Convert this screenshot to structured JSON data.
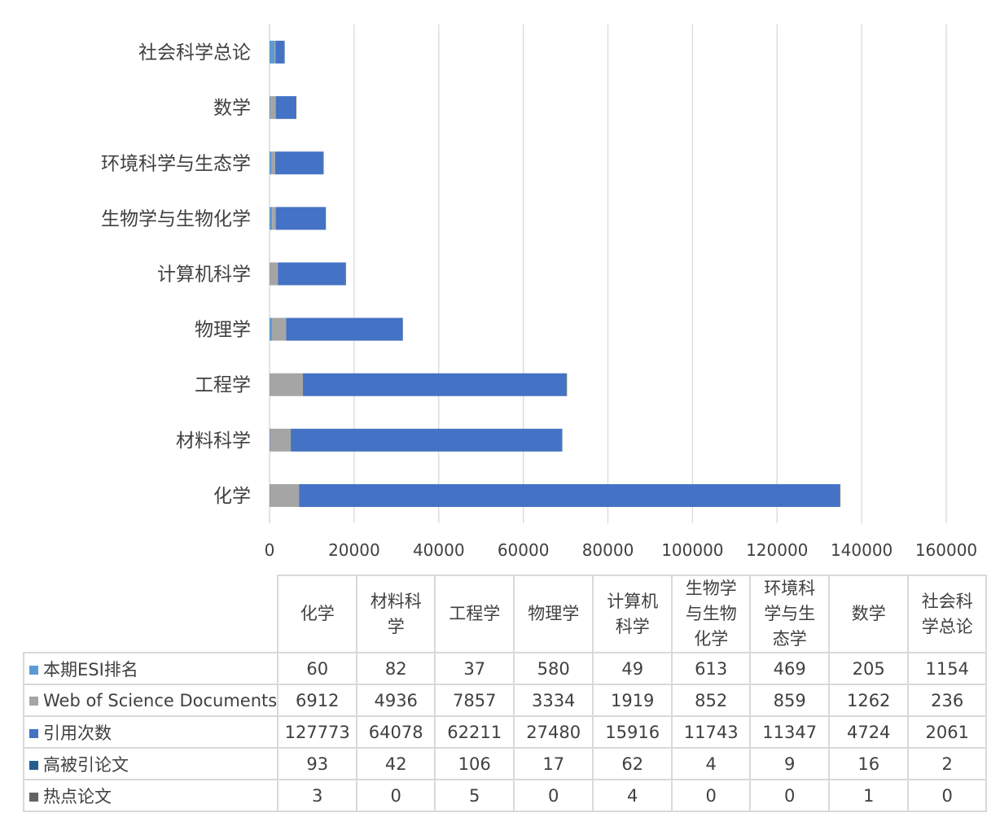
{
  "chart_data": {
    "type": "bar",
    "orientation": "horizontal",
    "stacked": true,
    "categories": [
      "化学",
      "材料科学",
      "工程学",
      "物理学",
      "计算机科学",
      "生物学与生物化学",
      "环境科学与生态学",
      "数学",
      "社会科学总论"
    ],
    "table_headers": [
      "化学",
      "材料科学",
      "工程学",
      "物理学",
      "计算机科学",
      "生物学与生物化学",
      "环境科学与生态学",
      "数学",
      "社会科学总论"
    ],
    "series": [
      {
        "name": "本期ESI排名",
        "color": "#5b9bd5",
        "values": [
          60,
          82,
          37,
          580,
          49,
          613,
          469,
          205,
          1154
        ]
      },
      {
        "name": "Web of Science Documents",
        "color": "#a5a5a5",
        "values": [
          6912,
          4936,
          7857,
          3334,
          1919,
          852,
          859,
          1262,
          236
        ]
      },
      {
        "name": "引用次数",
        "color": "#4472c4",
        "values": [
          127773,
          64078,
          62211,
          27480,
          15916,
          11743,
          11347,
          4724,
          2061
        ]
      },
      {
        "name": "高被引论文",
        "color": "#255e91",
        "values": [
          93,
          42,
          106,
          17,
          62,
          4,
          9,
          16,
          2
        ]
      },
      {
        "name": "热点论文",
        "color": "#636363",
        "values": [
          3,
          0,
          5,
          0,
          4,
          0,
          0,
          1,
          0
        ]
      }
    ],
    "x_ticks": [
      "0",
      "20000",
      "40000",
      "60000",
      "80000",
      "100000",
      "120000",
      "140000",
      "160000"
    ],
    "xlim": [
      0,
      160000
    ],
    "grid": true,
    "legend": "data-table"
  }
}
